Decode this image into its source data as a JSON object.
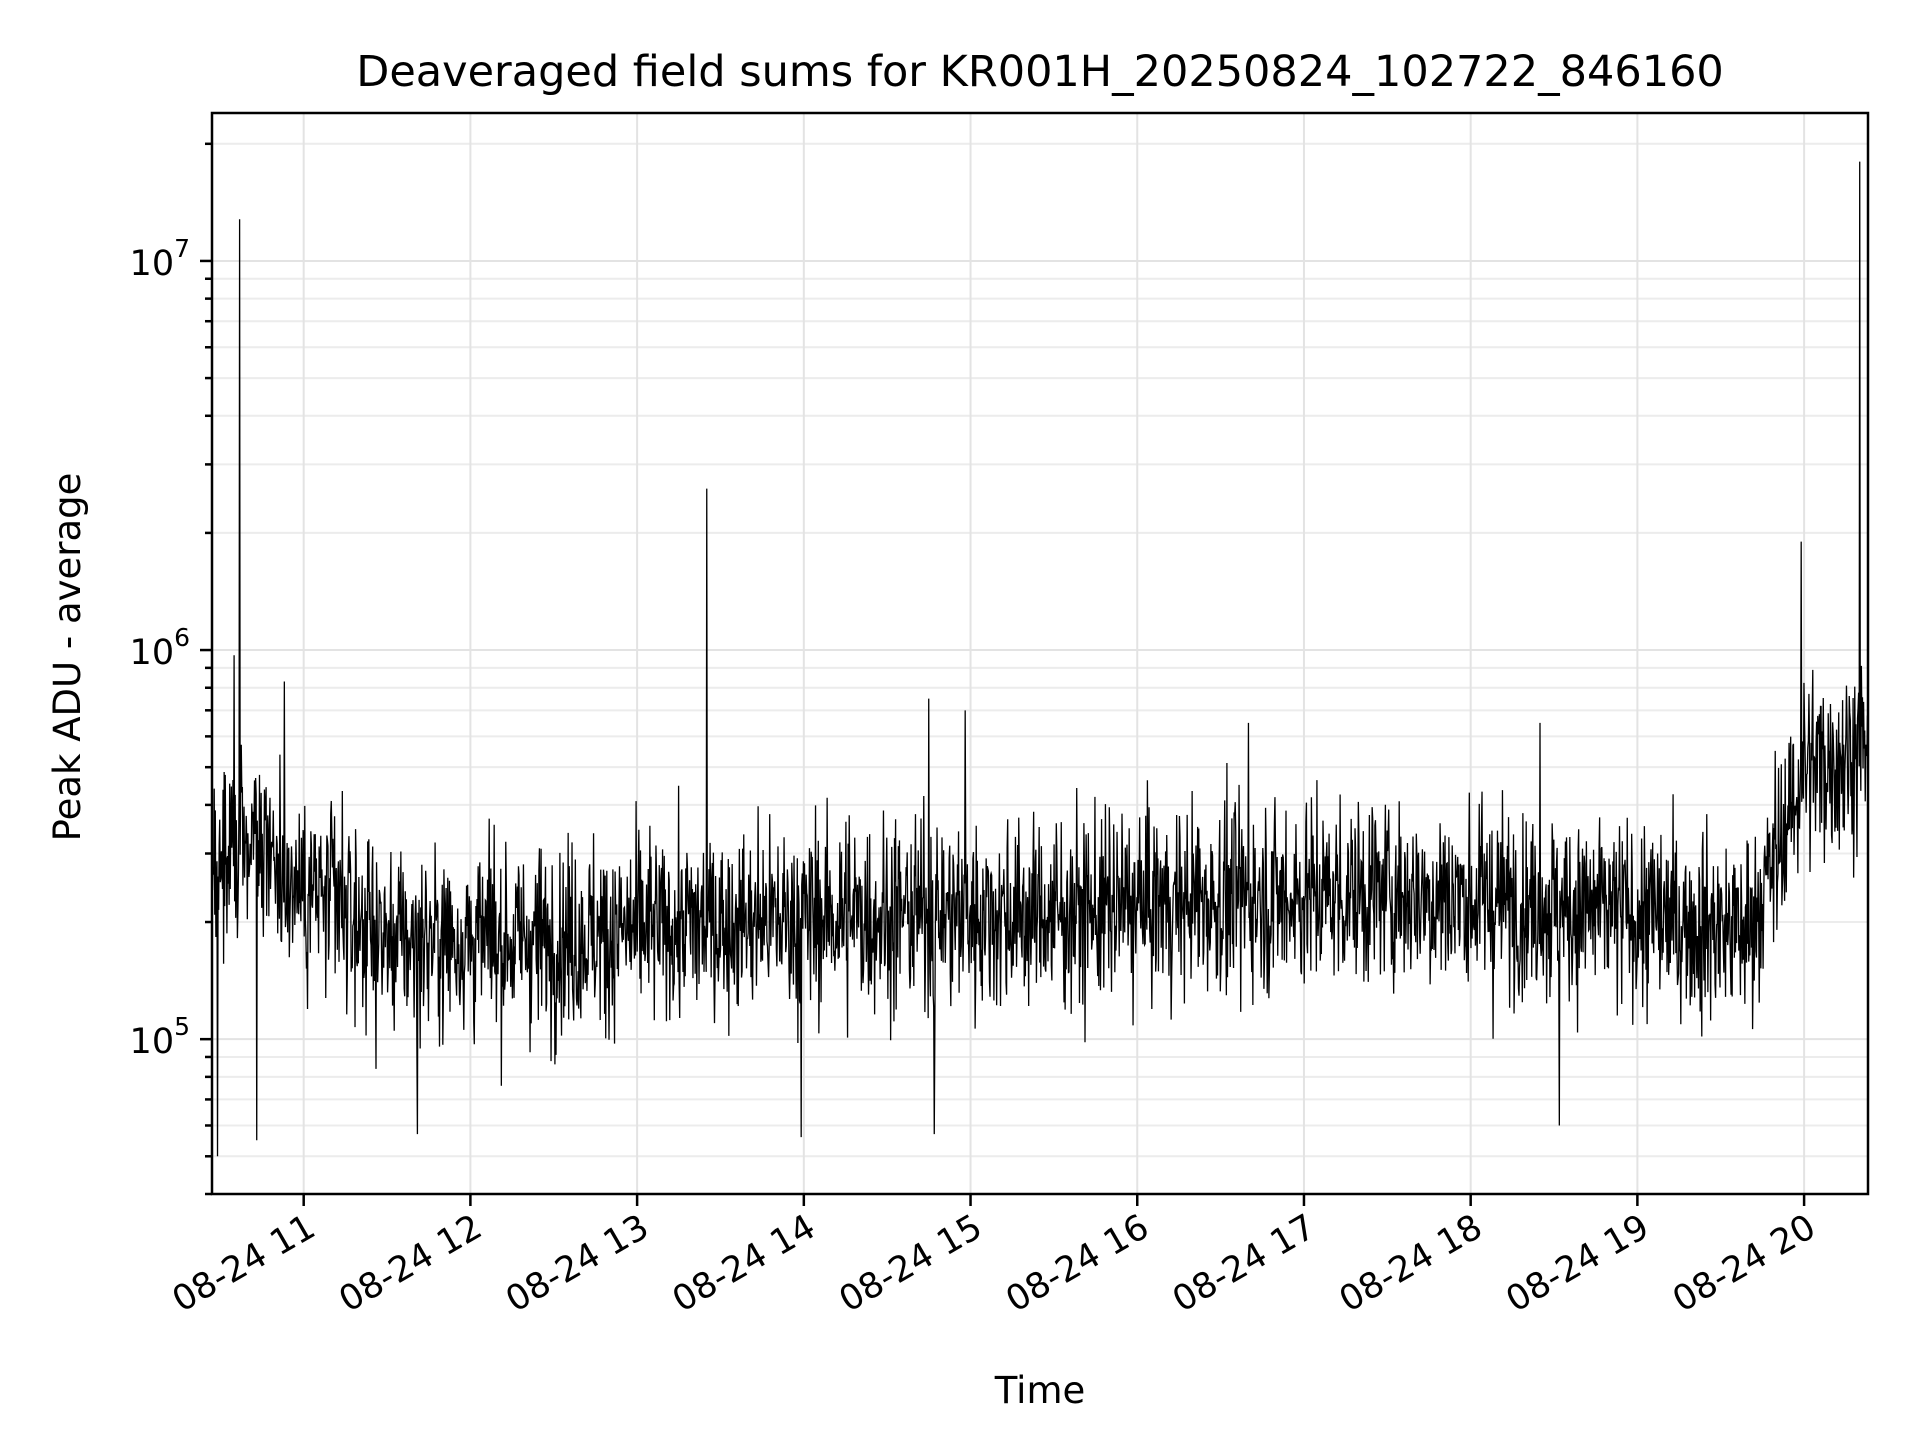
{
  "chart_data": {
    "type": "line",
    "title": "Deaveraged field sums for KR001H_20250824_102722_846160",
    "xlabel": "Time",
    "ylabel": "Peak ADU - average",
    "x_range": [
      "2025-08-24 10:27",
      "2025-08-24 20:23"
    ],
    "ylim": [
      40000,
      24000000
    ],
    "yscale": "log",
    "grid": true,
    "x_ticks": [
      {
        "value": "2025-08-24 11:00",
        "label": "08-24 11"
      },
      {
        "value": "2025-08-24 12:00",
        "label": "08-24 12"
      },
      {
        "value": "2025-08-24 13:00",
        "label": "08-24 13"
      },
      {
        "value": "2025-08-24 14:00",
        "label": "08-24 14"
      },
      {
        "value": "2025-08-24 15:00",
        "label": "08-24 15"
      },
      {
        "value": "2025-08-24 16:00",
        "label": "08-24 16"
      },
      {
        "value": "2025-08-24 17:00",
        "label": "08-24 17"
      },
      {
        "value": "2025-08-24 18:00",
        "label": "08-24 18"
      },
      {
        "value": "2025-08-24 19:00",
        "label": "08-24 19"
      },
      {
        "value": "2025-08-24 20:00",
        "label": "08-24 20"
      }
    ],
    "y_ticks": [
      {
        "value": 100000,
        "base": "10",
        "exp": "5"
      },
      {
        "value": 1000000,
        "base": "10",
        "exp": "6"
      },
      {
        "value": 10000000,
        "base": "10",
        "exp": "7"
      }
    ],
    "line_color": "#000000",
    "baseline": [
      {
        "x": "2025-08-24 10:27",
        "y": 250000
      },
      {
        "x": "2025-08-24 10:40",
        "y": 350000
      },
      {
        "x": "2025-08-24 10:55",
        "y": 260000
      },
      {
        "x": "2025-08-24 11:30",
        "y": 180000
      },
      {
        "x": "2025-08-24 12:30",
        "y": 180000
      },
      {
        "x": "2025-08-24 13:30",
        "y": 200000
      },
      {
        "x": "2025-08-24 14:30",
        "y": 210000
      },
      {
        "x": "2025-08-24 15:30",
        "y": 210000
      },
      {
        "x": "2025-08-24 16:30",
        "y": 230000
      },
      {
        "x": "2025-08-24 17:30",
        "y": 240000
      },
      {
        "x": "2025-08-24 18:30",
        "y": 220000
      },
      {
        "x": "2025-08-24 19:40",
        "y": 190000
      },
      {
        "x": "2025-08-24 19:52",
        "y": 320000
      },
      {
        "x": "2025-08-24 20:00",
        "y": 500000
      },
      {
        "x": "2025-08-24 20:23",
        "y": 560000
      }
    ],
    "spikes": [
      {
        "x": "2025-08-24 10:37",
        "y": 12800000
      },
      {
        "x": "2025-08-24 10:35",
        "y": 970000
      },
      {
        "x": "2025-08-24 10:53",
        "y": 830000
      },
      {
        "x": "2025-08-24 13:25",
        "y": 2600000
      },
      {
        "x": "2025-08-24 14:45",
        "y": 750000
      },
      {
        "x": "2025-08-24 14:58",
        "y": 700000
      },
      {
        "x": "2025-08-24 16:40",
        "y": 650000
      },
      {
        "x": "2025-08-24 18:25",
        "y": 650000
      },
      {
        "x": "2025-08-24 19:59",
        "y": 1900000
      },
      {
        "x": "2025-08-24 20:20",
        "y": 18000000
      },
      {
        "x": "2025-08-24 10:29",
        "y": 50000
      },
      {
        "x": "2025-08-24 10:43",
        "y": 55000
      },
      {
        "x": "2025-08-24 11:41",
        "y": 57000
      },
      {
        "x": "2025-08-24 13:59",
        "y": 56000
      },
      {
        "x": "2025-08-24 14:47",
        "y": 57000
      },
      {
        "x": "2025-08-24 18:32",
        "y": 60000
      }
    ]
  }
}
